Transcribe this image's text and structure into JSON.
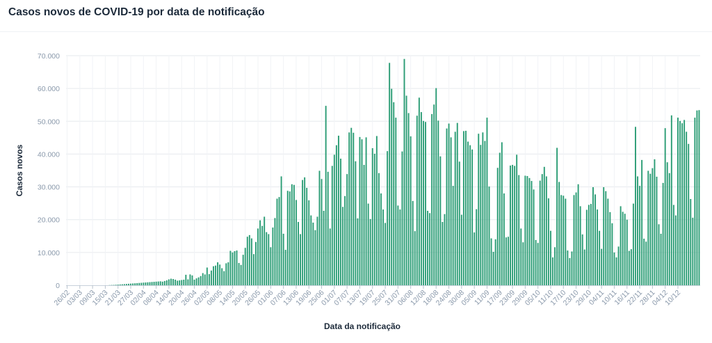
{
  "chart_data": {
    "type": "bar",
    "title": "Casos novos de COVID-19 por data de notificação",
    "xlabel": "Data da notificação",
    "ylabel": "Casos novos",
    "ylim": [
      0,
      70000
    ],
    "y_ticks": [
      "0",
      "10.000",
      "20.000",
      "30.000",
      "40.000",
      "50.000",
      "60.000",
      "70.000"
    ],
    "grid": true,
    "bar_color": "#2e9e77",
    "x_tick_labels": [
      "26/02",
      "03/03",
      "09/03",
      "15/03",
      "21/03",
      "27/03",
      "02/04",
      "08/04",
      "14/04",
      "20/04",
      "26/04",
      "02/05",
      "08/05",
      "14/05",
      "20/05",
      "26/05",
      "01/06",
      "07/06",
      "13/06",
      "19/06",
      "25/06",
      "01/07",
      "07/07",
      "13/07",
      "19/07",
      "25/07",
      "31/07",
      "06/08",
      "12/08",
      "18/08",
      "24/08",
      "30/08",
      "05/09",
      "11/09",
      "17/09",
      "23/09",
      "29/09",
      "05/10",
      "11/10",
      "17/10",
      "23/10",
      "29/10",
      "04/11",
      "10/11",
      "16/11",
      "22/11",
      "28/11",
      "04/12",
      "10/12"
    ],
    "start_date": "26/02",
    "values": [
      0,
      0,
      0,
      0,
      0,
      0,
      0,
      0,
      0,
      0,
      0,
      0,
      0,
      0,
      0,
      0,
      0,
      0,
      0,
      0,
      50,
      80,
      100,
      150,
      200,
      250,
      300,
      350,
      400,
      450,
      500,
      550,
      600,
      650,
      700,
      750,
      800,
      850,
      900,
      950,
      1000,
      1050,
      1100,
      1150,
      1200,
      1100,
      1300,
      1500,
      1800,
      2000,
      1900,
      1700,
      1400,
      1500,
      1600,
      1700,
      3200,
      1800,
      3300,
      3000,
      1700,
      2100,
      2400,
      2800,
      3700,
      3300,
      5400,
      3400,
      4500,
      5800,
      6000,
      7000,
      6300,
      5200,
      4300,
      6700,
      7000,
      10500,
      10000,
      10400,
      10600,
      6800,
      6200,
      9300,
      11400,
      14800,
      15300,
      14300,
      9500,
      13200,
      17300,
      19800,
      18100,
      20900,
      16200,
      15600,
      11600,
      17600,
      20500,
      26400,
      26900,
      33200,
      15700,
      10800,
      28800,
      28600,
      30800,
      30600,
      26000,
      19300,
      15600,
      32100,
      32900,
      29700,
      25900,
      21300,
      19100,
      16800,
      20900,
      34900,
      32400,
      22700,
      54700,
      34600,
      17300,
      36400,
      39800,
      42700,
      45600,
      38600,
      23900,
      27200,
      33900,
      46600,
      48000,
      46500,
      37800,
      20400,
      45200,
      44500,
      36700,
      45100,
      24900,
      20200,
      41800,
      40100,
      45500,
      34200,
      28000,
      23100,
      19000,
      40900,
      67800,
      59900,
      55800,
      51100,
      24300,
      23100,
      40800,
      69000,
      57800,
      52500,
      45400,
      25700,
      16500,
      51700,
      57200,
      52800,
      50100,
      49800,
      22700,
      22000,
      52200,
      55100,
      60100,
      50200,
      39300,
      19300,
      21700,
      47800,
      49300,
      45100,
      30300,
      46800,
      49500,
      37700,
      21500,
      47000,
      47100,
      43800,
      42700,
      41400,
      16100,
      23200,
      46200,
      42800,
      46600,
      44000,
      51100,
      30100,
      14300,
      10200,
      14000,
      35800,
      40400,
      43600,
      28000,
      14600,
      14800,
      36500,
      36700,
      36400,
      39800,
      33600,
      17300,
      13100,
      33400,
      33300,
      32700,
      31800,
      29200,
      13800,
      12900,
      31900,
      33900,
      36100,
      33200,
      26500,
      16600,
      8500,
      11600,
      41900,
      31500,
      27500,
      27300,
      26400,
      10600,
      8300,
      10300,
      27500,
      28300,
      30800,
      24100,
      15500,
      10900,
      23000,
      24500,
      24800,
      29900,
      27700,
      23100,
      16600,
      11100,
      29900,
      28700,
      26400,
      22300,
      18900,
      10000,
      8500,
      11800,
      24100,
      22400,
      21800,
      20000,
      10500,
      11000,
      24900,
      48300,
      33200,
      30300,
      38200,
      14200,
      13300,
      34900,
      34000,
      35700,
      38400,
      33100,
      18600,
      15700,
      31200,
      47900,
      37500,
      34200,
      51800,
      24500,
      21300,
      51100,
      50100,
      49400,
      50400,
      46800,
      43100,
      26300,
      20600,
      51100,
      53300,
      53400
    ]
  }
}
